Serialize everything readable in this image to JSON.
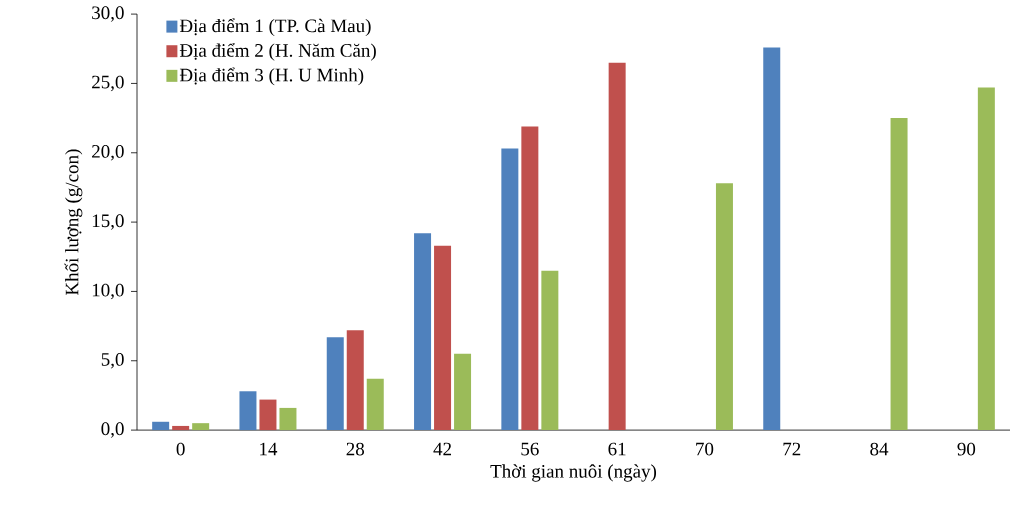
{
  "chart_data": {
    "type": "bar",
    "xlabel": "Thời gian nuôi (ngày)",
    "ylabel": "Khối lượng (g/con)",
    "categories": [
      "0",
      "14",
      "28",
      "42",
      "56",
      "61",
      "70",
      "72",
      "84",
      "90"
    ],
    "series": [
      {
        "name": "Địa điểm 1 (TP. Cà Mau)",
        "color": "#4f81bd",
        "values": [
          0.6,
          2.8,
          6.7,
          14.2,
          20.3,
          null,
          null,
          27.6,
          null,
          null
        ]
      },
      {
        "name": "Địa điểm 2 (H. Năm Căn)",
        "color": "#c0504d",
        "values": [
          0.3,
          2.2,
          7.2,
          13.3,
          21.9,
          26.5,
          null,
          null,
          null,
          null
        ]
      },
      {
        "name": "Địa điểm 3 (H. U Minh)",
        "color": "#9bbb59",
        "values": [
          0.5,
          1.6,
          3.7,
          5.5,
          11.5,
          null,
          17.8,
          null,
          22.5,
          24.7
        ]
      }
    ],
    "ylim": [
      0,
      30
    ],
    "yticks": [
      {
        "value": 0,
        "label": "0,0"
      },
      {
        "value": 5,
        "label": "5,0"
      },
      {
        "value": 10,
        "label": "10,0"
      },
      {
        "value": 15,
        "label": "15,0"
      },
      {
        "value": 20,
        "label": "20,0"
      },
      {
        "value": 25,
        "label": "25,0"
      },
      {
        "value": 30,
        "label": "30,0"
      }
    ],
    "legend": "top left",
    "grid": false
  }
}
